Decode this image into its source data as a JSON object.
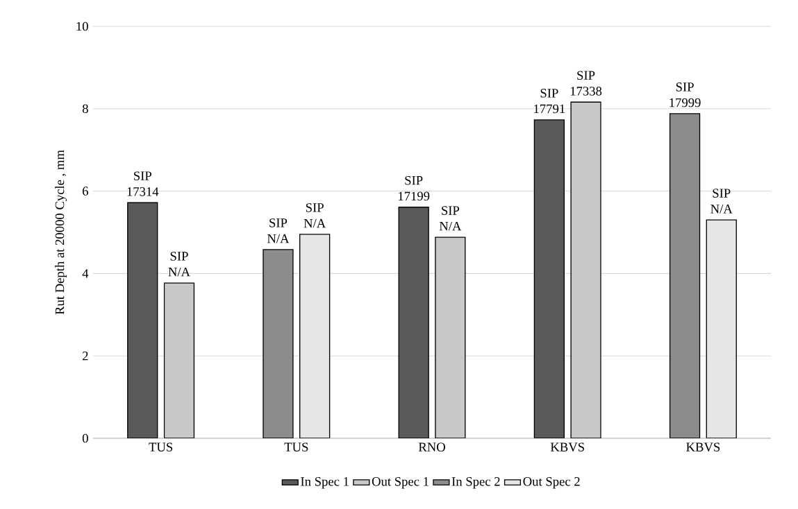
{
  "chart_data": {
    "type": "bar",
    "ylabel": "Rut Depth at 20000 Cycle , mm",
    "categories": [
      "TUS",
      "TUS",
      "RNO",
      "KBVS",
      "KBVS"
    ],
    "series": [
      {
        "name": "In Spec 1",
        "color": "#5a5a5a",
        "values": [
          5.72,
          null,
          5.61,
          7.73,
          null
        ]
      },
      {
        "name": "Out Spec 1",
        "color": "#c8c8c8",
        "values": [
          3.77,
          null,
          4.88,
          8.16,
          null
        ]
      },
      {
        "name": "In Spec 2",
        "color": "#8c8c8c",
        "values": [
          null,
          4.58,
          null,
          null,
          7.88
        ]
      },
      {
        "name": "Out Spec 2",
        "color": "#e6e6e6",
        "values": [
          null,
          4.95,
          null,
          null,
          5.3
        ]
      }
    ],
    "ylim": [
      0,
      10
    ],
    "yticks": [
      0,
      2,
      4,
      6,
      8,
      10
    ],
    "grid": "y",
    "legend": "bottom",
    "annotations": [
      "SIP 17314",
      "SIP N/A",
      "SIP N/A",
      "SIP N/A",
      "SIP 17199",
      "SIP N/A",
      "SIP 17791",
      "SIP 17338",
      "SIP 17999",
      "SIP N/A"
    ]
  }
}
